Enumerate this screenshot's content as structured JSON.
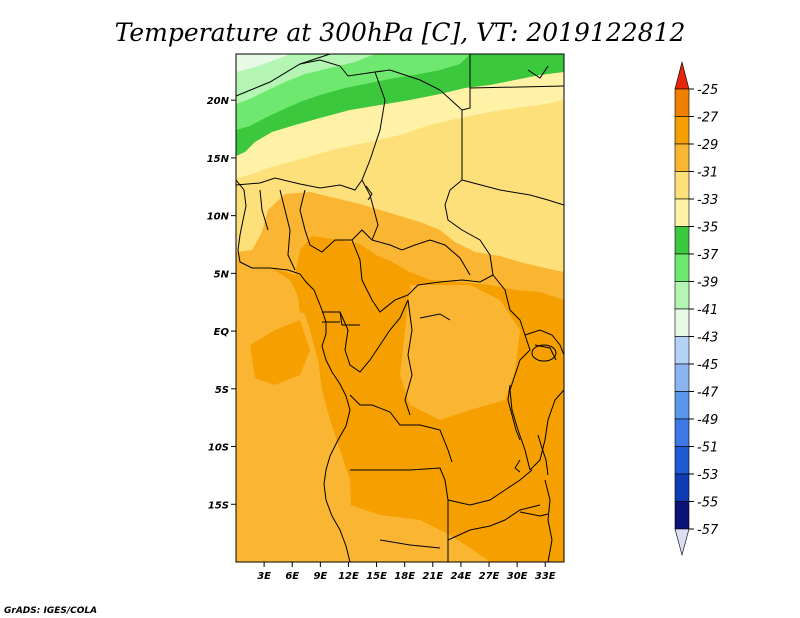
{
  "title": "Temperature at 300hPa [C], VT: 2019122812",
  "credit": "GrADS: IGES/COLA",
  "map": {
    "lon_range": [
      0,
      35
    ],
    "lat_range": [
      -20,
      24
    ],
    "x_ticks": [
      {
        "lon": 3,
        "label": "3E"
      },
      {
        "lon": 6,
        "label": "6E"
      },
      {
        "lon": 9,
        "label": "9E"
      },
      {
        "lon": 12,
        "label": "12E"
      },
      {
        "lon": 15,
        "label": "15E"
      },
      {
        "lon": 18,
        "label": "18E"
      },
      {
        "lon": 21,
        "label": "21E"
      },
      {
        "lon": 24,
        "label": "24E"
      },
      {
        "lon": 27,
        "label": "27E"
      },
      {
        "lon": 30,
        "label": "30E"
      },
      {
        "lon": 33,
        "label": "33E"
      }
    ],
    "y_ticks": [
      {
        "lat": 20,
        "label": "20N"
      },
      {
        "lat": 15,
        "label": "15N"
      },
      {
        "lat": 10,
        "label": "10N"
      },
      {
        "lat": 5,
        "label": "5N"
      },
      {
        "lat": 0,
        "label": "EQ"
      },
      {
        "lat": -5,
        "label": "5S"
      },
      {
        "lat": -10,
        "label": "10S"
      },
      {
        "lat": -15,
        "label": "15S"
      }
    ]
  },
  "colorbar": {
    "levels": [
      {
        "label": "-25",
        "color": "#f05a14"
      },
      {
        "label": "-27",
        "color": "#f07f00"
      },
      {
        "label": "-29",
        "color": "#f5a000"
      },
      {
        "label": "-31",
        "color": "#fab632"
      },
      {
        "label": "-33",
        "color": "#fde07a"
      },
      {
        "label": "-35",
        "color": "#fff2a6"
      },
      {
        "label": "-37",
        "color": "#3cc83c"
      },
      {
        "label": "-39",
        "color": "#6ee86e"
      },
      {
        "label": "-41",
        "color": "#b4f5b4"
      },
      {
        "label": "-43",
        "color": "#e6fae6"
      },
      {
        "label": "-45",
        "color": "#b4d2f5"
      },
      {
        "label": "-47",
        "color": "#8cb4f0"
      },
      {
        "label": "-49",
        "color": "#5a96eb"
      },
      {
        "label": "-51",
        "color": "#3c78e6"
      },
      {
        "label": "-53",
        "color": "#1e5ad2"
      },
      {
        "label": "-55",
        "color": "#0f3cb4"
      },
      {
        "label": "-57",
        "color": "#0a1478"
      }
    ],
    "top_arrow_color": "#e6260a",
    "bottom_arrow_color": "#dcdcf5"
  }
}
